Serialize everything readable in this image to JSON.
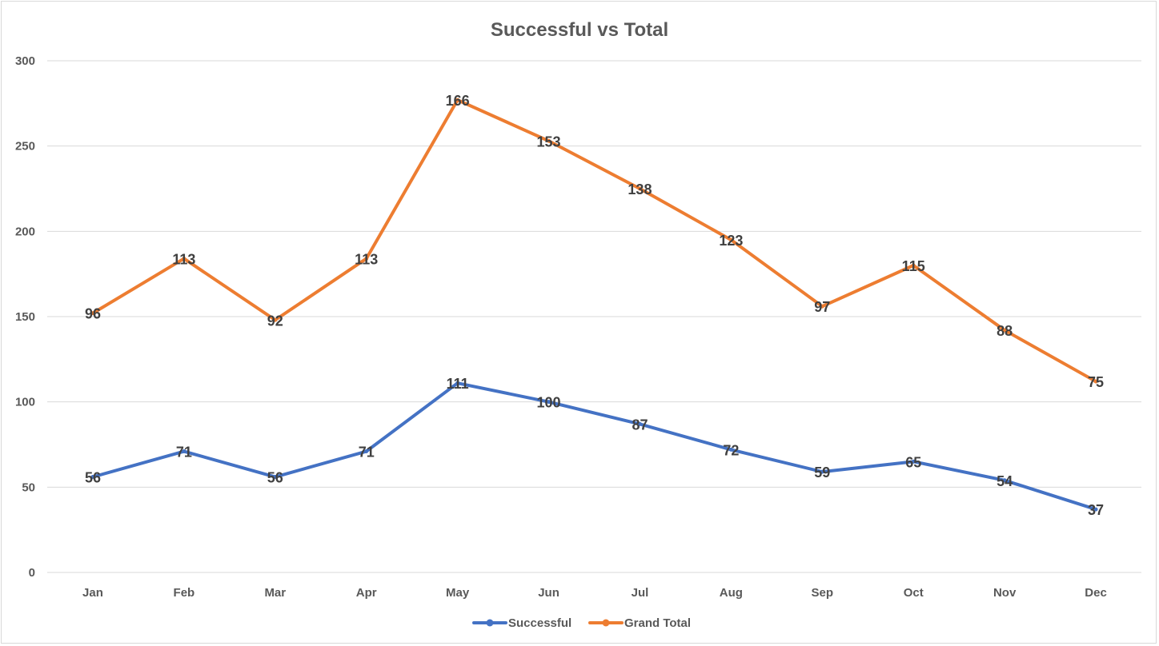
{
  "chart_data": {
    "type": "line",
    "title": "Successful vs Total",
    "xlabel": "",
    "ylabel": "",
    "categories": [
      "Jan",
      "Feb",
      "Mar",
      "Apr",
      "May",
      "Jun",
      "Jul",
      "Aug",
      "Sep",
      "Oct",
      "Nov",
      "Dec"
    ],
    "ylim": [
      0,
      300
    ],
    "yticks": [
      0,
      50,
      100,
      150,
      200,
      250,
      300
    ],
    "grid": true,
    "legend_position": "bottom",
    "series": [
      {
        "name": "Successful",
        "color": "#4472C4",
        "values": [
          56,
          71,
          56,
          71,
          111,
          100,
          87,
          72,
          59,
          65,
          54,
          37
        ],
        "labels": [
          "56",
          "71",
          "56",
          "71",
          "111",
          "100",
          "87",
          "72",
          "59",
          "65",
          "54",
          "37"
        ]
      },
      {
        "name": "Grand Total",
        "color": "#ED7D31",
        "values": [
          152,
          184,
          148,
          184,
          277,
          253,
          225,
          195,
          156,
          180,
          142,
          112
        ],
        "labels": [
          "96",
          "113",
          "92",
          "113",
          "166",
          "153",
          "138",
          "123",
          "97",
          "115",
          "88",
          "75"
        ]
      }
    ]
  }
}
